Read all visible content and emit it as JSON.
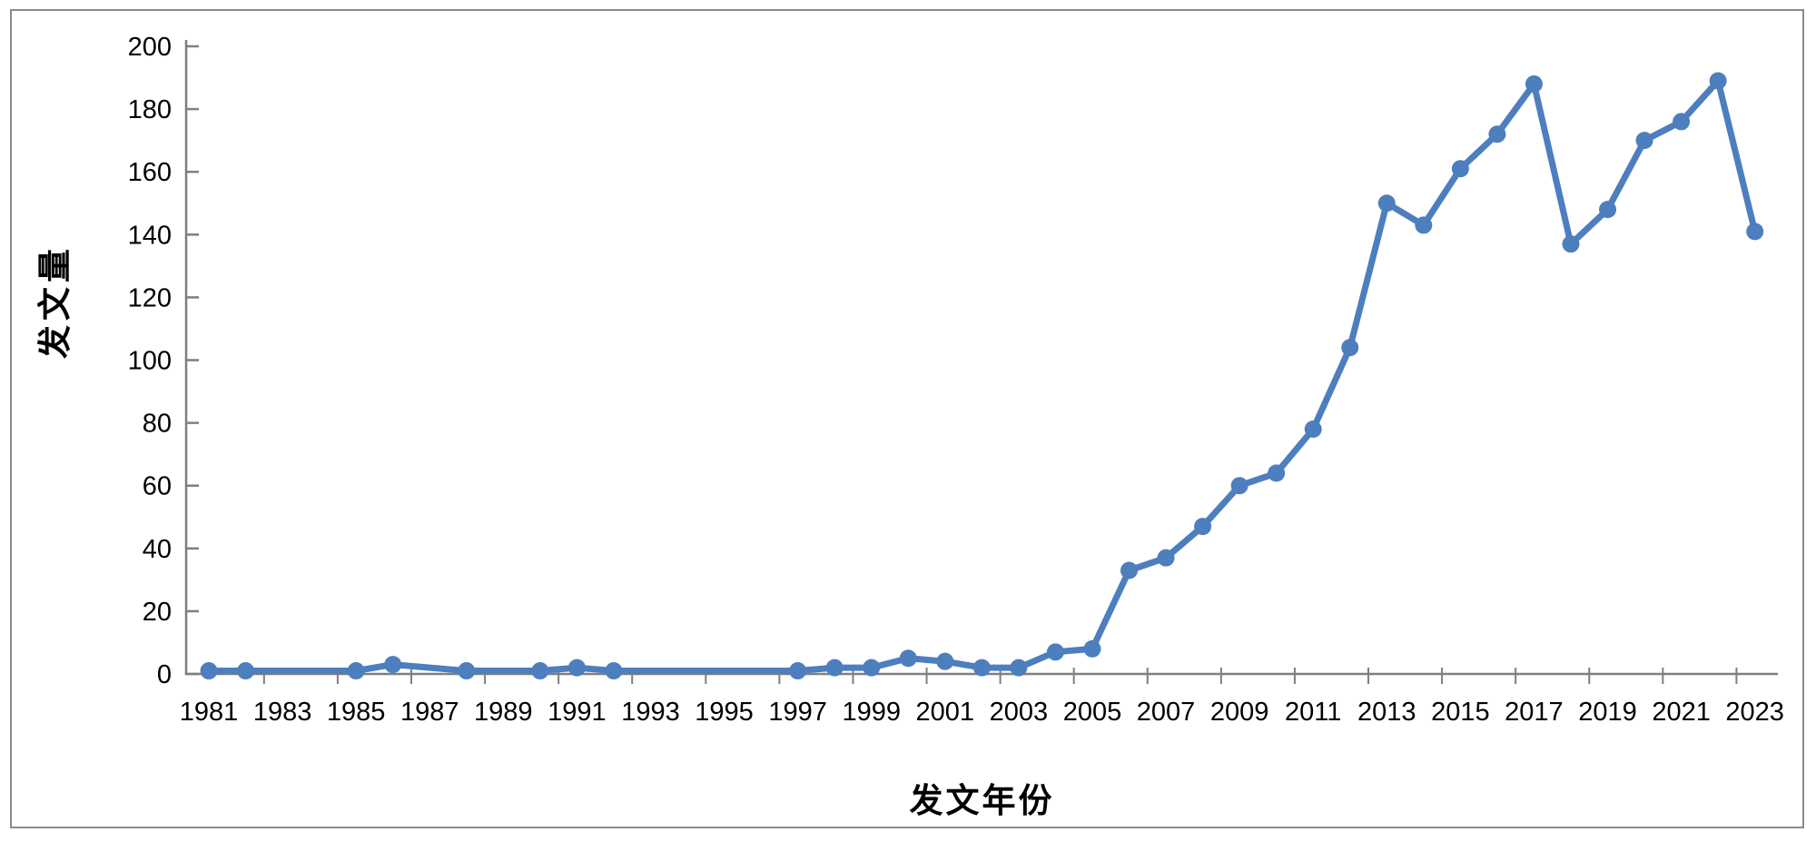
{
  "chart_data": {
    "type": "line",
    "title": "",
    "xlabel": "发文年份",
    "ylabel": "发文量",
    "x": [
      1981,
      1982,
      1983,
      1984,
      1985,
      1986,
      1987,
      1988,
      1989,
      1990,
      1991,
      1992,
      1993,
      1994,
      1995,
      1996,
      1997,
      1998,
      1999,
      2000,
      2001,
      2002,
      2003,
      2004,
      2005,
      2006,
      2007,
      2008,
      2009,
      2010,
      2011,
      2012,
      2013,
      2014,
      2015,
      2016,
      2017,
      2018,
      2019,
      2020,
      2021,
      2022,
      2023
    ],
    "series": [
      {
        "name": "发文量",
        "values": [
          1,
          1,
          null,
          null,
          1,
          3,
          null,
          1,
          null,
          1,
          2,
          1,
          null,
          null,
          null,
          null,
          1,
          2,
          2,
          5,
          4,
          2,
          2,
          7,
          8,
          33,
          37,
          47,
          60,
          64,
          78,
          104,
          150,
          143,
          161,
          172,
          188,
          137,
          148,
          170,
          176,
          189,
          141
        ]
      }
    ],
    "ylim": [
      0,
      200
    ],
    "ytick_interval": 20,
    "xtick_labels": [
      "1981",
      "1983",
      "1985",
      "1987",
      "1989",
      "1991",
      "1993",
      "1995",
      "1997",
      "1999",
      "2001",
      "2003",
      "2005",
      "2007",
      "2009",
      "2011",
      "2013",
      "2015",
      "2017",
      "2019",
      "2021",
      "2023"
    ],
    "grid": false,
    "legend": "none",
    "marker": "circle",
    "colors": {
      "line": "#4D7EBE",
      "axis": "#7F7F7F",
      "tick_label": "#000000",
      "frame_border": "#8A8A8A",
      "background": "#FFFFFF"
    }
  }
}
